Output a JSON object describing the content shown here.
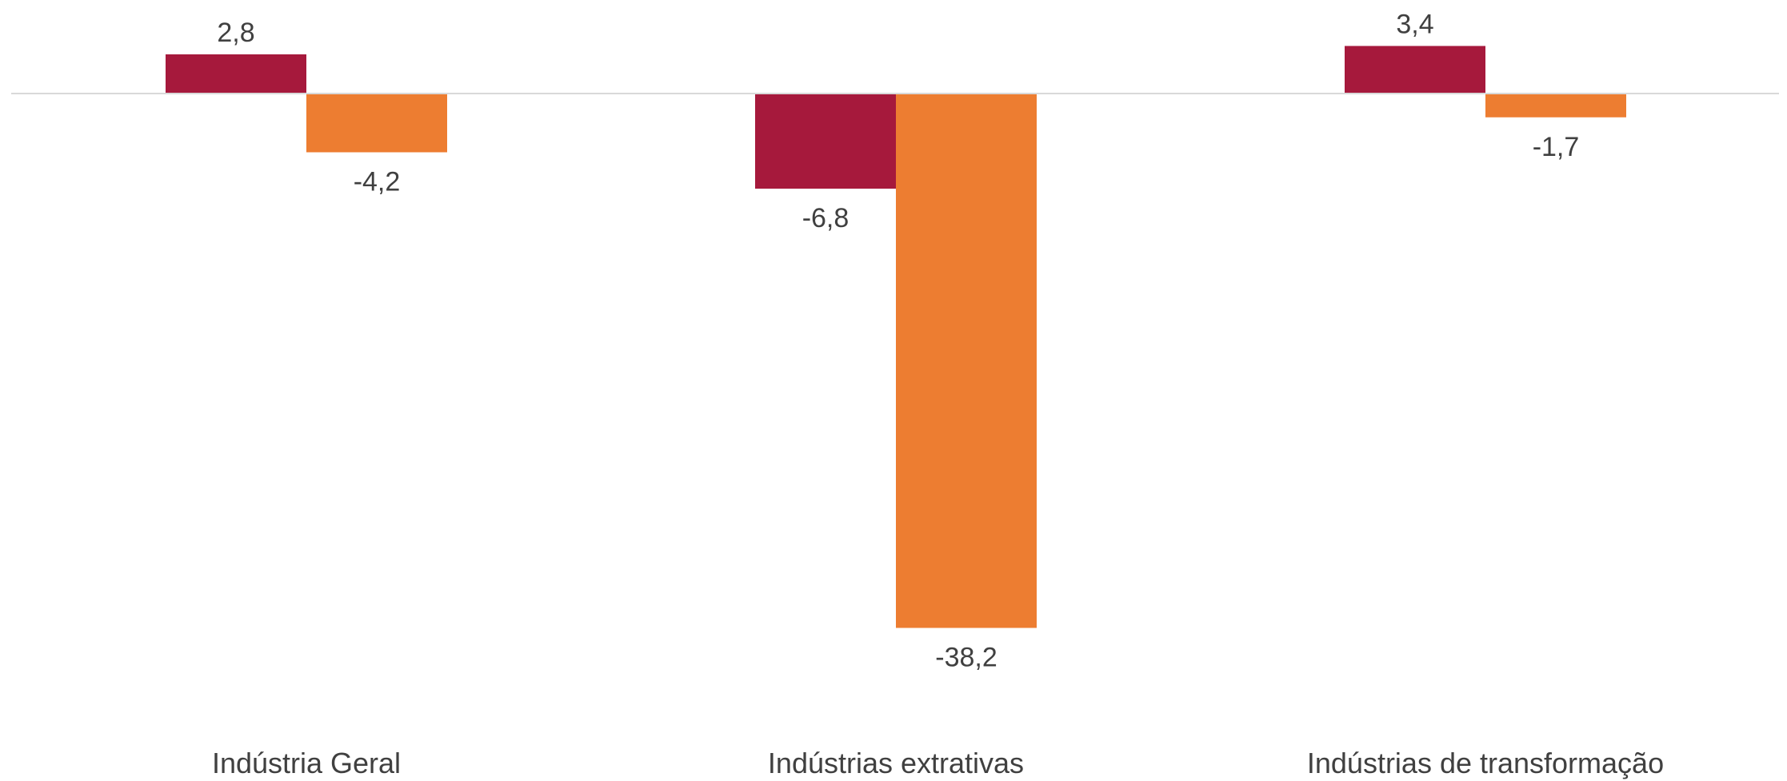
{
  "chart_data": {
    "type": "bar",
    "categories": [
      "Indústria Geral",
      "Indústrias extrativas",
      "Indústrias de transformação"
    ],
    "series": [
      {
        "values": [
          2.8,
          -6.8,
          3.4
        ],
        "labels": [
          "2,8",
          "-6,8",
          "3,4"
        ],
        "color": "#A6193C"
      },
      {
        "values": [
          -4.2,
          -38.2,
          -1.7
        ],
        "labels": [
          "-4,2",
          "-38,2",
          "-1,7"
        ],
        "color": "#ED7D31"
      }
    ],
    "title": "",
    "xlabel": "",
    "ylabel": "",
    "ylim": [
      -38.2,
      3.4
    ],
    "grid": false,
    "legend": "none",
    "zero_line_color": "#D9D9D9"
  }
}
